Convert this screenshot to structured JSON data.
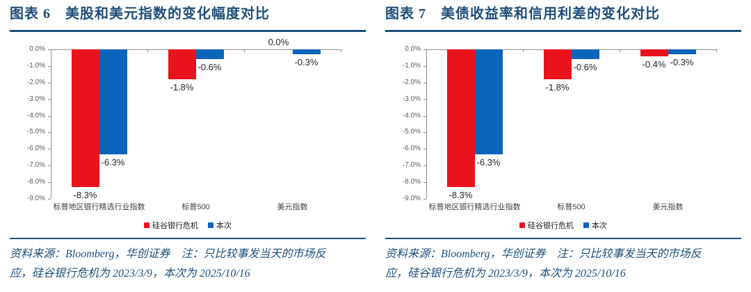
{
  "colors": {
    "accent_navy": "#1f4e79",
    "series_red": "#e8131d",
    "series_blue": "#0d64bb",
    "axis_gray": "#8c8c8c"
  },
  "figures": [
    {
      "caption": "图表 6　美股和美元指数的变化幅度对比",
      "source_note_line1": "资料来源：Bloomberg，华创证券　注：只比较事发当天的市场反",
      "source_note_line2": "应，硅谷银行危机为 2023/3/9，本次为 2025/10/16"
    },
    {
      "caption": "图表 7　美债收益率和信用利差的变化对比",
      "source_note_line1": "资料来源：Bloomberg，华创证券　注：只比较事发当天的市场反",
      "source_note_line2": "应，硅谷银行危机为 2023/3/9，本次为 2025/10/16"
    }
  ],
  "chart_data": [
    {
      "type": "bar",
      "title": "图表 6 美股和美元指数的变化幅度对比",
      "categories": [
        "标普地区银行精选行业指数",
        "标普500",
        "美元指数"
      ],
      "series": [
        {
          "name": "硅谷银行危机",
          "color": "#e8131d",
          "values": [
            -8.3,
            -1.8,
            0.0
          ]
        },
        {
          "name": "本次",
          "color": "#0d64bb",
          "values": [
            -6.3,
            -0.6,
            -0.3
          ]
        }
      ],
      "value_labels": [
        [
          "-8.3%",
          "-1.8%",
          "0.0%"
        ],
        [
          "-6.3%",
          "-0.6%",
          "-0.3%"
        ]
      ],
      "xlabel": "",
      "ylabel": "",
      "ylim": [
        -9.0,
        0.0
      ],
      "ytick_step": 1.0,
      "yticks": [
        "0.0%",
        "-1.0%",
        "-2.0%",
        "-3.0%",
        "-4.0%",
        "-5.0%",
        "-6.0%",
        "-7.0%",
        "-8.0%",
        "-9.0%"
      ],
      "grid": false,
      "legend_position": "bottom"
    },
    {
      "type": "bar",
      "title": "图表 7 美债收益率和信用利差的变化对比",
      "categories": [
        "标普地区银行精选行业指数",
        "标普500",
        "美元指数"
      ],
      "series": [
        {
          "name": "硅谷银行危机",
          "color": "#e8131d",
          "values": [
            -8.3,
            -1.8,
            -0.4
          ]
        },
        {
          "name": "本次",
          "color": "#0d64bb",
          "values": [
            -6.3,
            -0.6,
            -0.3
          ]
        }
      ],
      "value_labels": [
        [
          "-8.3%",
          "-1.8%",
          "-0.4%"
        ],
        [
          "-6.3%",
          "-0.6%",
          "-0.3%"
        ]
      ],
      "xlabel": "",
      "ylabel": "",
      "ylim": [
        -9.0,
        0.0
      ],
      "ytick_step": 1.0,
      "yticks": [
        "0.0%",
        "-1.0%",
        "-2.0%",
        "-3.0%",
        "-4.0%",
        "-5.0%",
        "-6.0%",
        "-7.0%",
        "-8.0%",
        "-9.0%"
      ],
      "grid": false,
      "legend_position": "bottom"
    }
  ]
}
